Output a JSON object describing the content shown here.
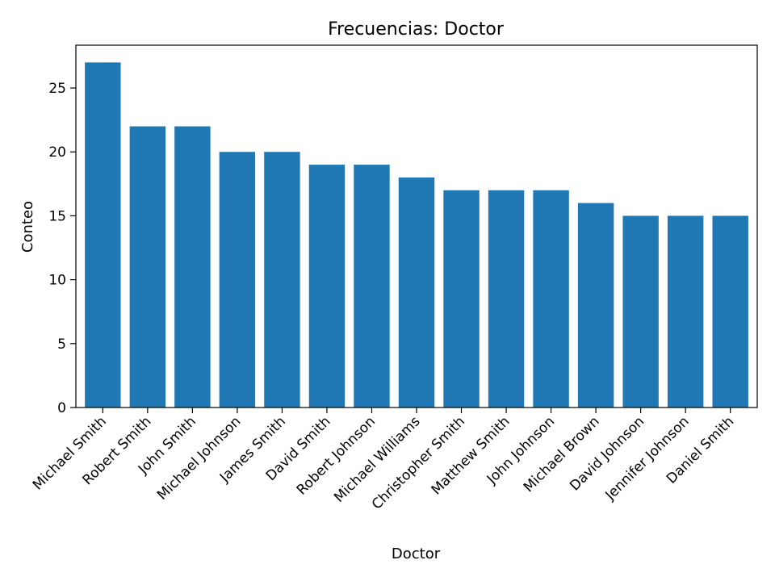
{
  "chart_data": {
    "type": "bar",
    "title": "Frecuencias: Doctor",
    "xlabel": "Doctor",
    "ylabel": "Conteo",
    "categories": [
      "Michael Smith",
      "Robert Smith",
      "John Smith",
      "Michael Johnson",
      "James Smith",
      "David Smith",
      "Robert Johnson",
      "Michael Williams",
      "Christopher Smith",
      "Matthew Smith",
      "John Johnson",
      "Michael Brown",
      "David Johnson",
      "Jennifer Johnson",
      "Daniel Smith"
    ],
    "values": [
      27,
      22,
      22,
      20,
      20,
      19,
      19,
      18,
      17,
      17,
      17,
      16,
      15,
      15,
      15
    ],
    "ylim": [
      0,
      28.35
    ],
    "yticks": [
      0,
      5,
      10,
      15,
      20,
      25
    ],
    "bar_color": "#1f77b4",
    "grid": false,
    "legend": "none"
  }
}
